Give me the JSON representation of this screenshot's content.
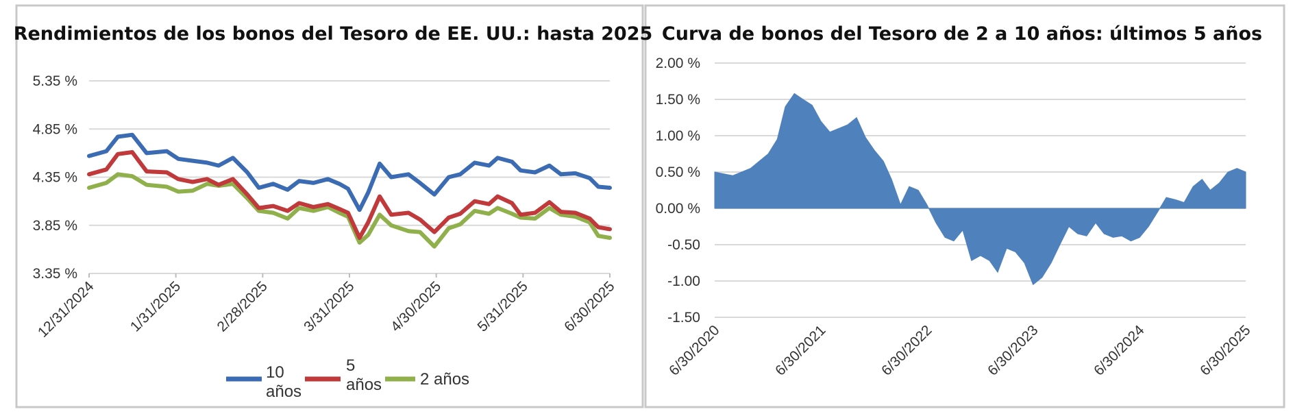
{
  "chart_data": [
    {
      "type": "line",
      "title": "Rendimientos de los bonos del Tesoro de EE. UU.: hasta 2025",
      "xlabel": "",
      "ylabel": "",
      "y_ticks": [
        "5.35 %",
        "4.85 %",
        "4.35 %",
        "3.85 %",
        "3.35 %"
      ],
      "ylim": [
        3.35,
        5.35
      ],
      "x_ticks": [
        "12/31/2024",
        "1/31/2025",
        "2/28/2025",
        "3/31/2025",
        "4/30/2025",
        "5/31/2025",
        "6/30/2025"
      ],
      "x": [
        "2024-12-31",
        "2025-01-06",
        "2025-01-10",
        "2025-01-15",
        "2025-01-20",
        "2025-01-27",
        "2025-01-31",
        "2025-02-05",
        "2025-02-10",
        "2025-02-14",
        "2025-02-19",
        "2025-02-24",
        "2025-02-28",
        "2025-03-05",
        "2025-03-10",
        "2025-03-14",
        "2025-03-19",
        "2025-03-24",
        "2025-03-28",
        "2025-03-31",
        "2025-04-04",
        "2025-04-07",
        "2025-04-11",
        "2025-04-15",
        "2025-04-21",
        "2025-04-25",
        "2025-04-30",
        "2025-05-05",
        "2025-05-09",
        "2025-05-14",
        "2025-05-19",
        "2025-05-22",
        "2025-05-27",
        "2025-05-30",
        "2025-06-04",
        "2025-06-09",
        "2025-06-13",
        "2025-06-18",
        "2025-06-23",
        "2025-06-26",
        "2025-06-30"
      ],
      "series": [
        {
          "name": "10 años",
          "color": "#3b6cb3",
          "values": [
            4.57,
            4.62,
            4.77,
            4.79,
            4.6,
            4.62,
            4.54,
            4.52,
            4.5,
            4.47,
            4.55,
            4.4,
            4.24,
            4.28,
            4.22,
            4.31,
            4.29,
            4.33,
            4.28,
            4.23,
            4.01,
            4.19,
            4.49,
            4.35,
            4.38,
            4.29,
            4.17,
            4.35,
            4.38,
            4.5,
            4.47,
            4.55,
            4.51,
            4.42,
            4.4,
            4.47,
            4.38,
            4.39,
            4.34,
            4.25,
            4.24
          ]
        },
        {
          "name": "5 años",
          "color": "#c0393b",
          "values": [
            4.38,
            4.43,
            4.59,
            4.61,
            4.41,
            4.4,
            4.33,
            4.3,
            4.33,
            4.27,
            4.33,
            4.17,
            4.03,
            4.05,
            4.0,
            4.08,
            4.04,
            4.07,
            4.02,
            3.98,
            3.72,
            3.88,
            4.15,
            3.96,
            3.98,
            3.91,
            3.78,
            3.93,
            3.97,
            4.1,
            4.07,
            4.15,
            4.08,
            3.96,
            3.98,
            4.09,
            3.99,
            3.98,
            3.92,
            3.83,
            3.81
          ]
        },
        {
          "name": "2 años",
          "color": "#8fb04a",
          "values": [
            4.24,
            4.29,
            4.38,
            4.36,
            4.27,
            4.25,
            4.2,
            4.21,
            4.28,
            4.26,
            4.28,
            4.13,
            4.0,
            3.98,
            3.92,
            4.03,
            4.0,
            4.04,
            3.98,
            3.94,
            3.67,
            3.75,
            3.96,
            3.85,
            3.79,
            3.78,
            3.63,
            3.82,
            3.86,
            4.0,
            3.97,
            4.03,
            3.97,
            3.93,
            3.92,
            4.03,
            3.96,
            3.94,
            3.88,
            3.74,
            3.72
          ]
        }
      ],
      "legend": "bottom",
      "legend_entries": [
        "10 años",
        "5 años",
        "2 años"
      ],
      "grid": true
    },
    {
      "type": "area",
      "title": "Curva de bonos del Tesoro de 2 a 10 años: últimos 5 años",
      "xlabel": "",
      "ylabel": "",
      "y_ticks": [
        "2.00 %",
        "1.50 %",
        "1.00 %",
        "0.50 %",
        "0.00 %",
        "-0.50",
        "-1.00",
        "-1.50"
      ],
      "ylim": [
        -1.5,
        2.0
      ],
      "x_ticks": [
        "6/30/2020",
        "6/30/2021",
        "6/30/2022",
        "6/30/2023",
        "6/30/2024",
        "6/30/2025"
      ],
      "x": [
        "2020-06-30",
        "2020-08-31",
        "2020-10-31",
        "2020-12-31",
        "2021-01-31",
        "2021-02-28",
        "2021-03-31",
        "2021-04-30",
        "2021-05-31",
        "2021-06-30",
        "2021-07-31",
        "2021-08-31",
        "2021-09-30",
        "2021-10-31",
        "2021-11-30",
        "2021-12-31",
        "2022-01-31",
        "2022-02-28",
        "2022-03-31",
        "2022-04-30",
        "2022-05-31",
        "2022-06-30",
        "2022-07-31",
        "2022-08-31",
        "2022-09-30",
        "2022-10-31",
        "2022-11-30",
        "2022-12-31",
        "2023-01-31",
        "2023-02-28",
        "2023-03-31",
        "2023-04-30",
        "2023-05-31",
        "2023-06-30",
        "2023-07-31",
        "2023-08-31",
        "2023-09-30",
        "2023-10-31",
        "2023-11-30",
        "2023-12-31",
        "2024-01-31",
        "2024-02-29",
        "2024-03-31",
        "2024-04-30",
        "2024-05-31",
        "2024-06-30",
        "2024-07-31",
        "2024-08-31",
        "2024-09-30",
        "2024-10-31",
        "2024-11-30",
        "2024-12-31",
        "2025-01-31",
        "2025-02-28",
        "2025-03-31",
        "2025-04-30",
        "2025-05-31",
        "2025-06-30"
      ],
      "series": [
        {
          "name": "",
          "color": "#4f81bd",
          "values": [
            0.5,
            0.45,
            0.55,
            0.75,
            0.95,
            1.4,
            1.58,
            1.5,
            1.42,
            1.2,
            1.05,
            1.1,
            1.15,
            1.25,
            0.98,
            0.8,
            0.65,
            0.4,
            0.05,
            0.3,
            0.25,
            0.05,
            -0.2,
            -0.4,
            -0.45,
            -0.3,
            -0.72,
            -0.65,
            -0.72,
            -0.88,
            -0.55,
            -0.6,
            -0.75,
            -1.05,
            -0.95,
            -0.75,
            -0.5,
            -0.25,
            -0.35,
            -0.38,
            -0.2,
            -0.35,
            -0.4,
            -0.38,
            -0.45,
            -0.4,
            -0.25,
            -0.05,
            0.15,
            0.12,
            0.08,
            0.3,
            0.4,
            0.25,
            0.35,
            0.5,
            0.55,
            0.5
          ]
        }
      ],
      "legend": "none",
      "grid": true
    }
  ]
}
